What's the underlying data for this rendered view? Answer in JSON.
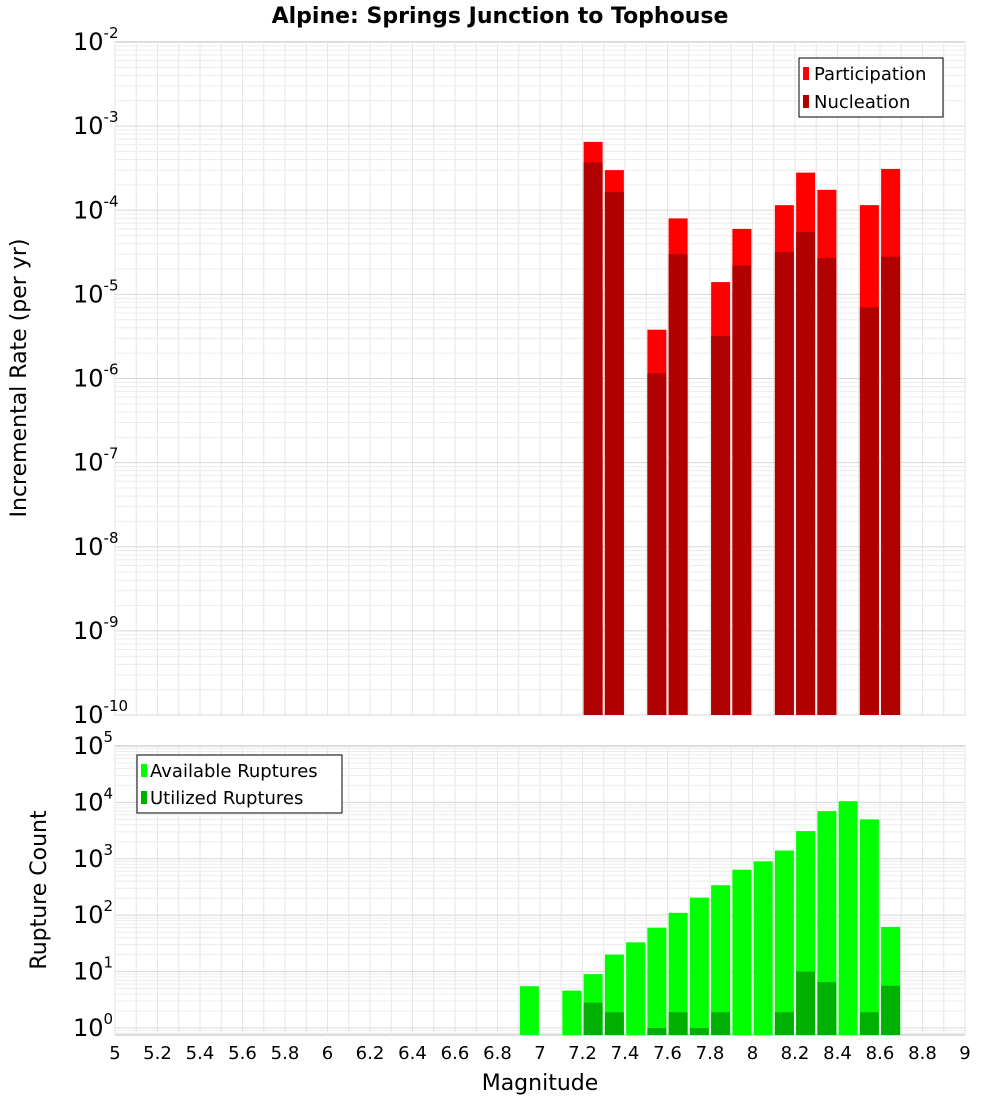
{
  "chart_data": [
    {
      "type": "bar",
      "title": "Alpine: Springs Junction to Tophouse",
      "ylabel": "Incremental Rate (per yr)",
      "yscale": "log",
      "ylim": [
        1e-10,
        0.01
      ],
      "xlim": [
        5,
        9
      ],
      "grid": true,
      "legend_placement": "top-right",
      "legend": [
        "Participation",
        "Nucleation"
      ],
      "colors": {
        "Participation": "#ff0000",
        "Nucleation": "#b00000"
      },
      "y_ticks": [
        {
          "base": "10",
          "exp": "-10"
        },
        {
          "base": "10",
          "exp": "-9"
        },
        {
          "base": "10",
          "exp": "-8"
        },
        {
          "base": "10",
          "exp": "-7"
        },
        {
          "base": "10",
          "exp": "-6"
        },
        {
          "base": "10",
          "exp": "-5"
        },
        {
          "base": "10",
          "exp": "-4"
        },
        {
          "base": "10",
          "exp": "-3"
        },
        {
          "base": "10",
          "exp": "-2"
        }
      ],
      "x": [
        7.25,
        7.35,
        7.55,
        7.65,
        7.85,
        7.95,
        8.15,
        8.25,
        8.35,
        8.55,
        8.65
      ],
      "series": [
        {
          "name": "Participation",
          "values": [
            0.00065,
            0.0003,
            3.8e-06,
            8e-05,
            1.4e-05,
            6e-05,
            0.000115,
            0.00028,
            0.000175,
            0.000115,
            0.00031
          ]
        },
        {
          "name": "Nucleation",
          "values": [
            0.00037,
            0.000165,
            1.15e-06,
            3e-05,
            3.2e-06,
            2.2e-05,
            3.2e-05,
            5.5e-05,
            2.7e-05,
            7e-06,
            2.8e-05
          ]
        }
      ]
    },
    {
      "type": "bar",
      "xlabel": "Magnitude",
      "ylabel": "Rupture Count",
      "yscale": "log",
      "ylim": [
        0.75,
        100000.0
      ],
      "xlim": [
        5,
        9
      ],
      "grid": true,
      "legend_placement": "top-left",
      "legend": [
        "Available Ruptures",
        "Utilized Ruptures"
      ],
      "colors": {
        "Available Ruptures": "#00ff00",
        "Utilized Ruptures": "#00b000"
      },
      "y_ticks": [
        {
          "base": "10",
          "exp": "0"
        },
        {
          "base": "10",
          "exp": "1"
        },
        {
          "base": "10",
          "exp": "2"
        },
        {
          "base": "10",
          "exp": "3"
        },
        {
          "base": "10",
          "exp": "4"
        },
        {
          "base": "10",
          "exp": "5"
        }
      ],
      "x_ticks": [
        "5",
        "5.2",
        "5.4",
        "5.6",
        "5.8",
        "6",
        "6.2",
        "6.4",
        "6.6",
        "6.8",
        "7",
        "7.2",
        "7.4",
        "7.6",
        "7.8",
        "8",
        "8.2",
        "8.4",
        "8.6",
        "8.8",
        "9"
      ],
      "x": [
        6.95,
        7.15,
        7.25,
        7.35,
        7.45,
        7.55,
        7.65,
        7.75,
        7.85,
        7.95,
        8.05,
        8.15,
        8.25,
        8.35,
        8.45,
        8.55,
        8.65
      ],
      "series": [
        {
          "name": "Available Ruptures",
          "values": [
            5.5,
            4.6,
            9,
            20,
            33,
            60,
            110,
            205,
            340,
            640,
            900,
            1400,
            3100,
            7000,
            10500,
            5000,
            62
          ]
        },
        {
          "name": "Utilized Ruptures",
          "values": [
            0,
            0,
            2.8,
            1.9,
            0,
            1,
            1.9,
            1,
            1.9,
            0,
            0,
            1.9,
            10,
            6.5,
            0,
            1.9,
            5.6
          ]
        }
      ]
    }
  ]
}
